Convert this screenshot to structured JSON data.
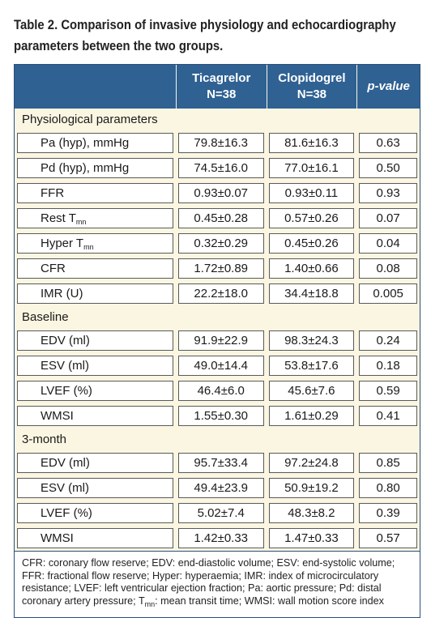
{
  "caption": "Table 2. Comparison of invasive physiology and echocardiography parameters between the two groups.",
  "header": {
    "col1_line1": "Ticagrelor",
    "col1_line2": "N=38",
    "col2_line1": "Clopidogrel",
    "col2_line2": "N=38",
    "col3": "p-value"
  },
  "sections": [
    {
      "title": "Physiological parameters",
      "rows": [
        {
          "label": "Pa (hyp), mmHg",
          "ticagrelor": "79.8±16.3",
          "clopidogrel": "81.6±16.3",
          "p": "0.63"
        },
        {
          "label": "Pd (hyp), mmHg",
          "ticagrelor": "74.5±16.0",
          "clopidogrel": "77.0±16.1",
          "p": "0.50"
        },
        {
          "label": "FFR",
          "ticagrelor": "0.93±0.07",
          "clopidogrel": "0.93±0.11",
          "p": "0.93"
        },
        {
          "label": "Rest T",
          "label_sub": "mn",
          "ticagrelor": "0.45±0.28",
          "clopidogrel": "0.57±0.26",
          "p": "0.07"
        },
        {
          "label": "Hyper T",
          "label_sub": "mn",
          "ticagrelor": "0.32±0.29",
          "clopidogrel": "0.45±0.26",
          "p": "0.04"
        },
        {
          "label": "CFR",
          "ticagrelor": "1.72±0.89",
          "clopidogrel": "1.40±0.66",
          "p": "0.08"
        },
        {
          "label": "IMR (U)",
          "ticagrelor": "22.2±18.0",
          "clopidogrel": "34.4±18.8",
          "p": "0.005"
        }
      ]
    },
    {
      "title": "Baseline",
      "rows": [
        {
          "label": "EDV (ml)",
          "ticagrelor": "91.9±22.9",
          "clopidogrel": "98.3±24.3",
          "p": "0.24"
        },
        {
          "label": "ESV (ml)",
          "ticagrelor": "49.0±14.4",
          "clopidogrel": "53.8±17.6",
          "p": "0.18"
        },
        {
          "label": "LVEF (%)",
          "ticagrelor": "46.4±6.0",
          "clopidogrel": "45.6±7.6",
          "p": "0.59"
        },
        {
          "label": "WMSI",
          "ticagrelor": "1.55±0.30",
          "clopidogrel": "1.61±0.29",
          "p": "0.41"
        }
      ]
    },
    {
      "title": "3-month",
      "rows": [
        {
          "label": "EDV (ml)",
          "ticagrelor": "95.7±33.4",
          "clopidogrel": "97.2±24.8",
          "p": "0.85"
        },
        {
          "label": "ESV (ml)",
          "ticagrelor": "49.4±23.9",
          "clopidogrel": "50.9±19.2",
          "p": "0.80"
        },
        {
          "label": "LVEF (%)",
          "ticagrelor": "5.02±7.4",
          "clopidogrel": "48.3±8.2",
          "p": "0.39"
        },
        {
          "label": "WMSI",
          "ticagrelor": "1.42±0.33",
          "clopidogrel": "1.47±0.33",
          "p": "0.57"
        }
      ]
    }
  ],
  "footnote": {
    "part1": "CFR: coronary flow reserve; EDV: end-diastolic volume; ESV: end-systolic volume; FFR: fractional flow reserve; Hyper: hyperaemia; IMR: index of microcirculatory resistance; LVEF: left ventricular ejection fraction; Pa: aortic pressure; Pd: distal coronary artery pressure; T",
    "sub": "mn",
    "part2": ": mean transit time; WMSI: wall motion score index"
  },
  "colors": {
    "header_bg": "#2f6193",
    "table_bg": "#fbf6e2",
    "border": "#2a4f7a"
  }
}
